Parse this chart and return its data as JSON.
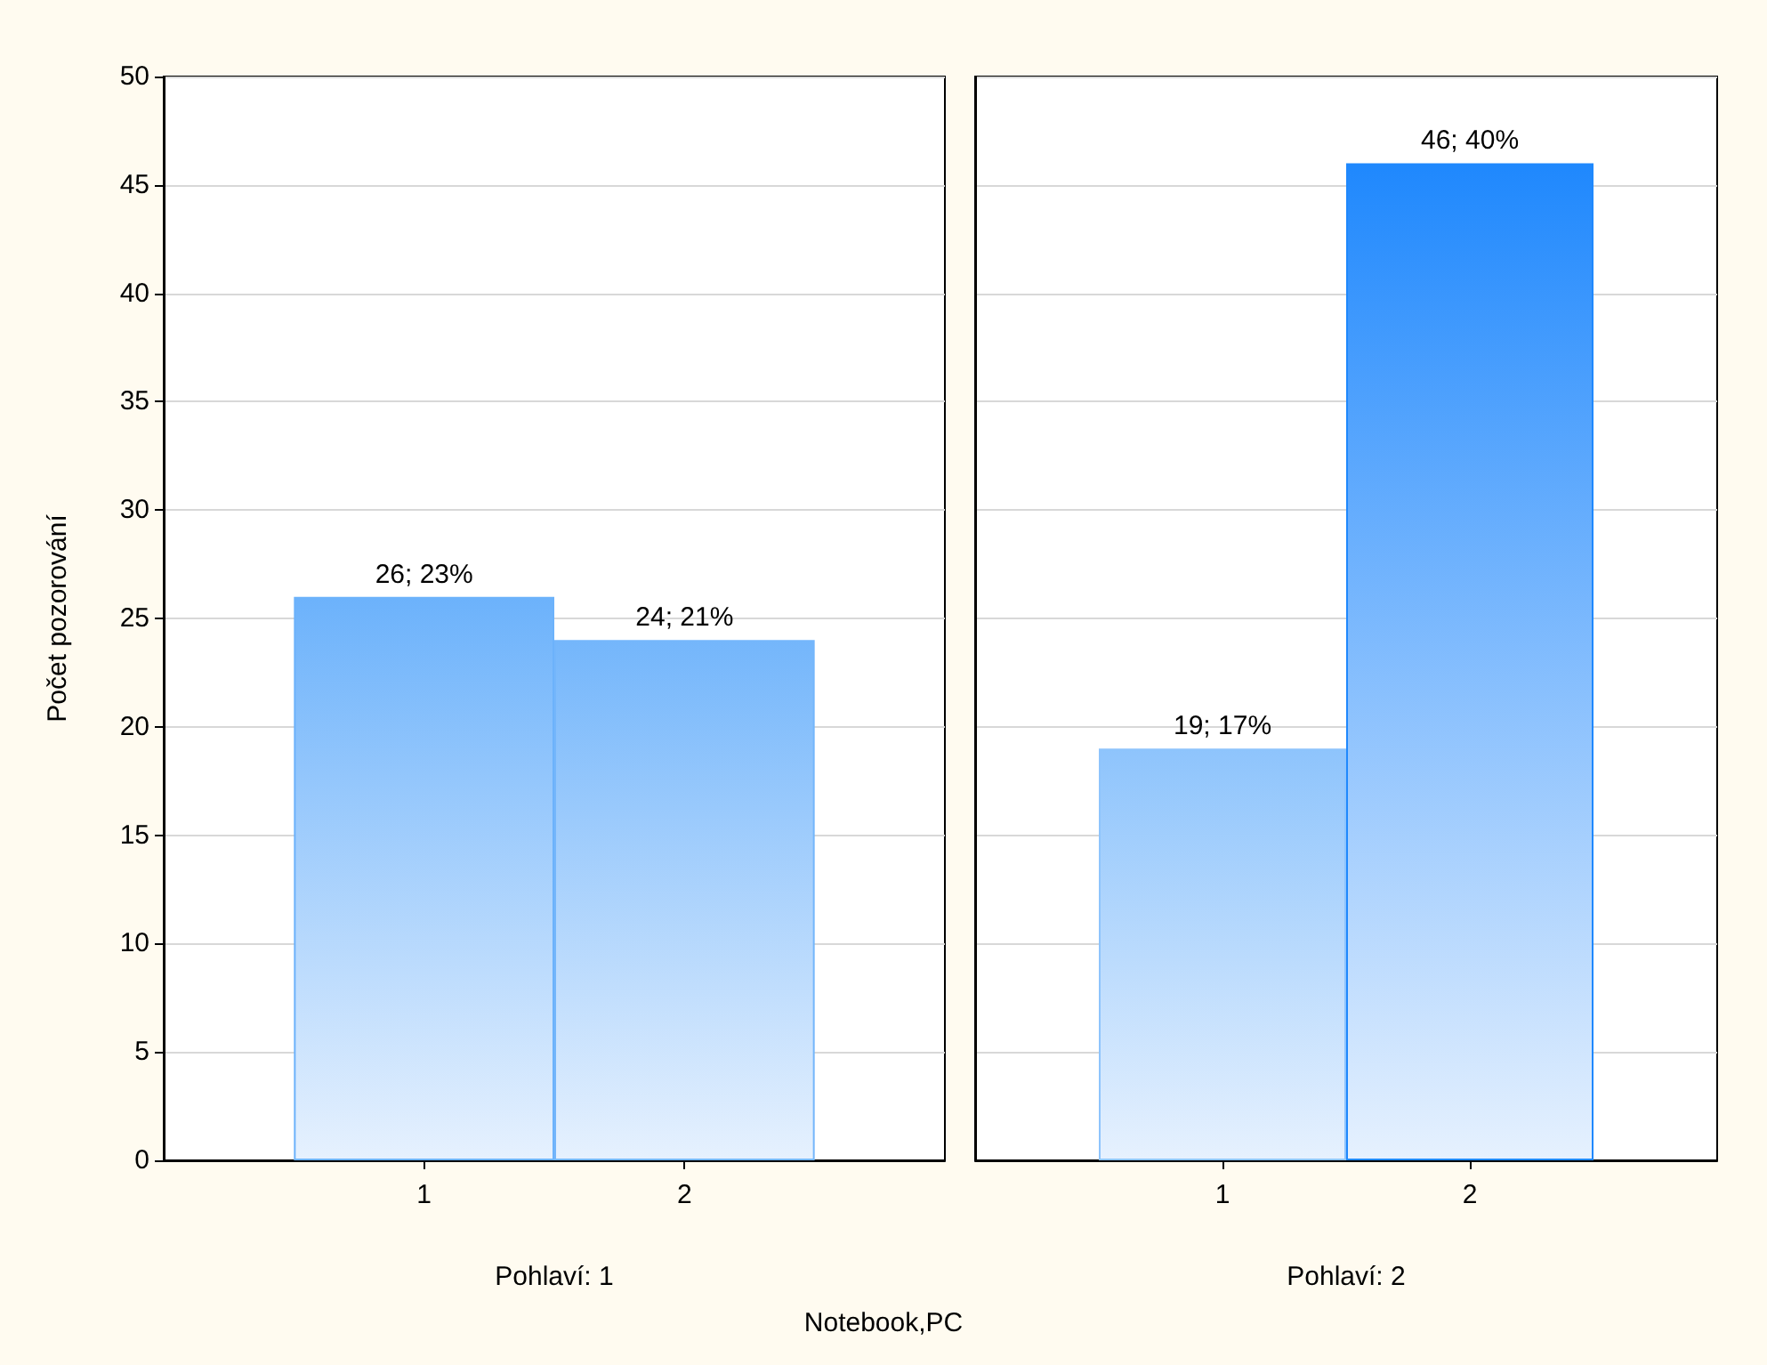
{
  "chart_data": [
    {
      "type": "bar",
      "xlabel": "Pohlaví: 1",
      "ylabel": "Počet pozorování",
      "categories": [
        "1",
        "2"
      ],
      "values": [
        26,
        24
      ],
      "value_labels": [
        "26; 23%",
        "24; 21%"
      ],
      "colors": [
        "#6cb2fb",
        "#74b6fb"
      ],
      "ylim": [
        0,
        50
      ],
      "yticks": [
        0,
        5,
        10,
        15,
        20,
        25,
        30,
        35,
        40,
        45,
        50
      ],
      "grid": "y",
      "annotations": [
        "Notebook,PC"
      ]
    },
    {
      "type": "bar",
      "xlabel": "Pohlaví: 2",
      "categories": [
        "1",
        "2"
      ],
      "values": [
        19,
        46
      ],
      "value_labels": [
        "19; 17%",
        "46; 40%"
      ],
      "colors": [
        "#8ec4fc",
        "#1f88fd"
      ],
      "ylim": [
        0,
        50
      ],
      "yticks": [
        0,
        5,
        10,
        15,
        20,
        25,
        30,
        35,
        40,
        45,
        50
      ],
      "grid": "y",
      "tick_labels": "x"
    }
  ]
}
